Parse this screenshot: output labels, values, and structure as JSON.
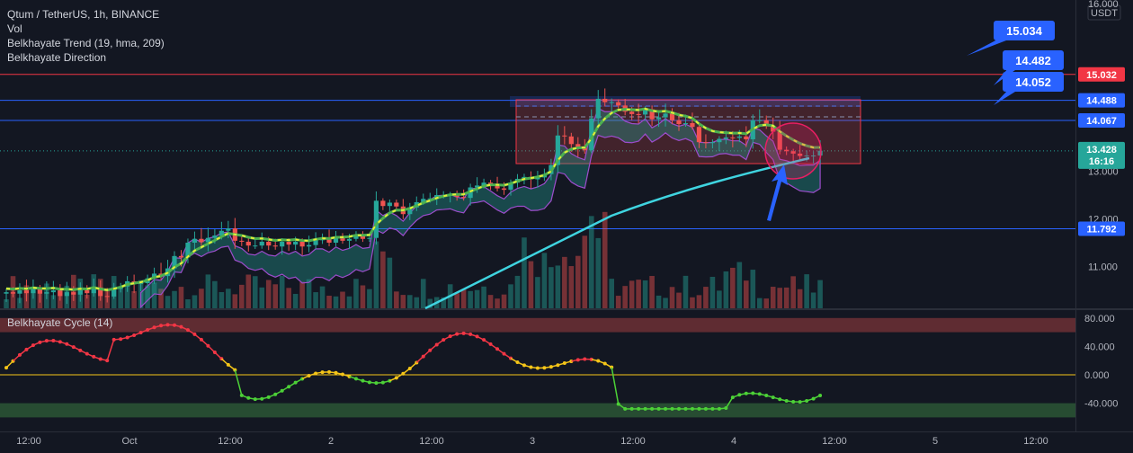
{
  "legend": {
    "symbol": "Qtum / TetherUS, 1h, BINANCE",
    "indicator_vol": "Vol",
    "indicator_trend": "Belkhayate Trend (19, hma, 209)",
    "indicator_direction": "Belkhayate Direction",
    "cycle": "Belkhayate Cycle",
    "cycle_param": "(14)"
  },
  "price_axis": {
    "currency": "USDT",
    "ticks": [
      {
        "label": "16.000",
        "value": 16.0
      },
      {
        "label": "13.000",
        "value": 13.0
      },
      {
        "label": "12.000",
        "value": 12.0
      },
      {
        "label": "11.000",
        "value": 11.0
      }
    ],
    "badges": [
      {
        "label": "15.032",
        "value": 15.032,
        "color": "#f23645"
      },
      {
        "label": "14.488",
        "value": 14.488,
        "color": "#2962ff"
      },
      {
        "label": "14.067",
        "value": 14.067,
        "color": "#2962ff"
      },
      {
        "label": "11.792",
        "value": 11.792,
        "color": "#2962ff"
      }
    ],
    "current": {
      "price": "13.428",
      "countdown": "16:16",
      "value": 13.428,
      "color": "#26a69a"
    }
  },
  "callouts": [
    {
      "label": "15.034",
      "value": 15.034
    },
    {
      "label": "14.482",
      "value": 14.482
    },
    {
      "label": "14.052",
      "value": 14.052
    }
  ],
  "cycle_axis": {
    "ticks": [
      {
        "label": "80.000",
        "value": 80
      },
      {
        "label": "40.000",
        "value": 40
      },
      {
        "label": "0.000",
        "value": 0
      },
      {
        "label": "-40.000",
        "value": -40
      }
    ]
  },
  "time_axis": {
    "ticks": [
      "12:00",
      "Oct",
      "12:00",
      "2",
      "12:00",
      "3",
      "12:00",
      "4",
      "12:00",
      "5",
      "12:00"
    ]
  },
  "colors": {
    "up": "#26a69a",
    "down": "#ef5350",
    "background": "#131722",
    "level_line": "#2962ff",
    "resistance_line": "#f23645",
    "cyan_line": "#3fd4e0",
    "zero_line": "#f5c518"
  },
  "chart_data": {
    "type": "candlestick",
    "price_range": [
      10.3,
      16.0
    ],
    "close_series": [
      10.46,
      10.43,
      10.5,
      10.44,
      10.53,
      10.43,
      10.46,
      10.5,
      10.38,
      10.46,
      10.41,
      10.5,
      10.44,
      10.56,
      10.38,
      10.37,
      10.53,
      10.58,
      10.69,
      10.64,
      10.65,
      10.75,
      10.85,
      10.8,
      10.96,
      11.22,
      11.19,
      11.5,
      11.58,
      11.51,
      11.6,
      11.65,
      11.75,
      11.8,
      11.54,
      11.52,
      11.44,
      11.44,
      11.52,
      11.44,
      11.42,
      11.52,
      11.46,
      11.52,
      11.42,
      11.45,
      11.57,
      11.57,
      11.5,
      11.61,
      11.54,
      11.58,
      11.66,
      11.58,
      11.6,
      12.38,
      12.27,
      12.34,
      12.26,
      12.1,
      12.24,
      12.35,
      12.42,
      12.43,
      12.5,
      12.5,
      12.51,
      12.46,
      12.44,
      12.66,
      12.7,
      12.76,
      12.7,
      12.64,
      12.61,
      12.76,
      12.84,
      12.88,
      12.83,
      12.87,
      12.94,
      13.13,
      13.75,
      13.73,
      13.57,
      13.49,
      13.44,
      14.11,
      14.52,
      14.45,
      14.45,
      14.38,
      14.25,
      14.2,
      14.19,
      14.3,
      14.09,
      14.13,
      14.21,
      14.07,
      13.99,
      14.01,
      13.93,
      13.61,
      13.6,
      13.61,
      13.68,
      13.71,
      13.7,
      13.73,
      13.67,
      14.07,
      14.07,
      13.94,
      13.83,
      13.45,
      13.42,
      13.37,
      13.32,
      13.33,
      13.33,
      13.43
    ],
    "volume_peaks_note": "volume bars shown under price",
    "range_box": {
      "top": 14.5,
      "bottom": 13.16
    },
    "cycle_range": [
      -60,
      95
    ]
  }
}
